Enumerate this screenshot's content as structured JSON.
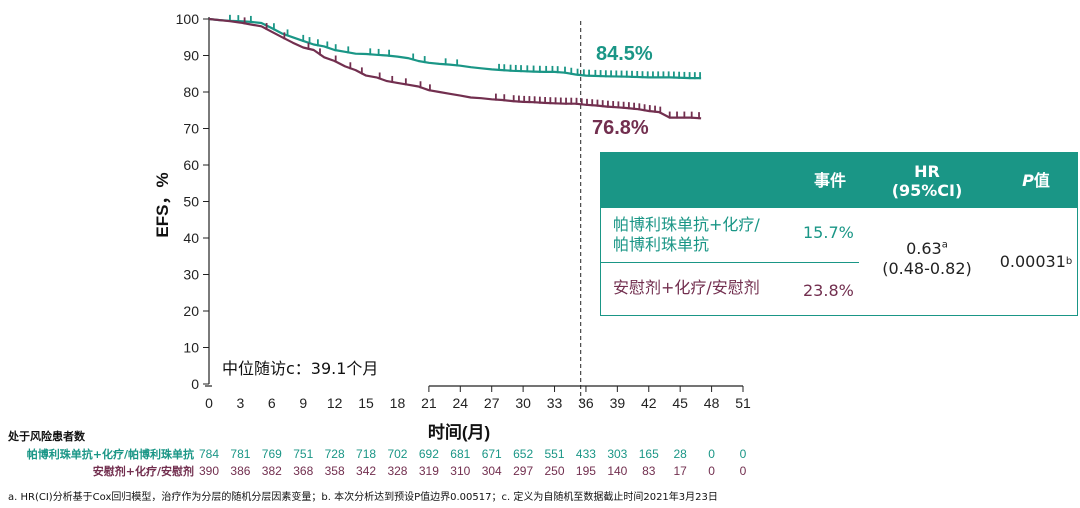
{
  "chart_data": {
    "type": "line",
    "title": "",
    "xlabel": "时间(月)",
    "ylabel": "EFS，%",
    "xlim": [
      0,
      51
    ],
    "ylim": [
      0,
      100
    ],
    "x_ticks": [
      0,
      3,
      6,
      9,
      12,
      15,
      18,
      21,
      24,
      27,
      30,
      33,
      36,
      39,
      42,
      45,
      48,
      51
    ],
    "y_ticks": [
      0,
      10,
      20,
      30,
      40,
      50,
      60,
      70,
      80,
      90,
      100
    ],
    "reference_line_x": 35.5,
    "series": [
      {
        "name": "帕博利珠单抗+化疗/帕博利珠单抗",
        "color": "#1a9686",
        "final_label": "84.5%",
        "points": [
          [
            0,
            100
          ],
          [
            1,
            99.7
          ],
          [
            2,
            99.5
          ],
          [
            3,
            99.4
          ],
          [
            4,
            99.2
          ],
          [
            5,
            98.9
          ],
          [
            6,
            97.5
          ],
          [
            7,
            96
          ],
          [
            8,
            95
          ],
          [
            9,
            94
          ],
          [
            10,
            93
          ],
          [
            11,
            92.5
          ],
          [
            12,
            91.5
          ],
          [
            13,
            91
          ],
          [
            14,
            90.5
          ],
          [
            15,
            90.4
          ],
          [
            16,
            90.2
          ],
          [
            17,
            90
          ],
          [
            18,
            89.7
          ],
          [
            19,
            89.3
          ],
          [
            20,
            88.5
          ],
          [
            21,
            88
          ],
          [
            22,
            87.7
          ],
          [
            23,
            87.5
          ],
          [
            24,
            87.2
          ],
          [
            25,
            86.8
          ],
          [
            26,
            86.5
          ],
          [
            27,
            86.2
          ],
          [
            28,
            86
          ],
          [
            29,
            85.8
          ],
          [
            30,
            85.7
          ],
          [
            31,
            85.6
          ],
          [
            32,
            85.5
          ],
          [
            33,
            85.5
          ],
          [
            34,
            85.3
          ],
          [
            35,
            84.8
          ],
          [
            36,
            84.5
          ],
          [
            38,
            84.3
          ],
          [
            40,
            84.2
          ],
          [
            42,
            84
          ],
          [
            44,
            84
          ],
          [
            46,
            83.8
          ],
          [
            47,
            83.8
          ]
        ],
        "censor_x": [
          2,
          2.8,
          4,
          6.2,
          7.5,
          9,
          9.6,
          10.4,
          11.3,
          12.1,
          13.3,
          15.4,
          16.2,
          17.2,
          19.5,
          20.6,
          22.6,
          23.7,
          27.7,
          28.2,
          28.8,
          29.3,
          29.8,
          30.4,
          31,
          31.6,
          32.2,
          32.8,
          33.3,
          34,
          34.6,
          35.2,
          35.8,
          36.3,
          36.9,
          37.4,
          37.9,
          38.4,
          38.9,
          39.4,
          39.9,
          40.4,
          40.9,
          41.4,
          41.9,
          42.4,
          42.9,
          43.4,
          43.9,
          44.4,
          44.9,
          45.4,
          45.9,
          46.4,
          46.9
        ]
      },
      {
        "name": "安慰剂+化疗/安慰剂",
        "color": "#722f4f",
        "final_label": "76.8%",
        "points": [
          [
            0,
            100
          ],
          [
            2,
            99.4
          ],
          [
            3,
            99
          ],
          [
            4,
            98.5
          ],
          [
            5,
            98
          ],
          [
            6,
            96.5
          ],
          [
            7,
            95
          ],
          [
            8,
            93.5
          ],
          [
            9,
            92.2
          ],
          [
            10,
            91.5
          ],
          [
            11,
            89.5
          ],
          [
            12,
            88.5
          ],
          [
            13,
            87
          ],
          [
            14,
            86
          ],
          [
            15,
            84.5
          ],
          [
            16,
            84
          ],
          [
            17,
            83
          ],
          [
            18,
            82.5
          ],
          [
            19,
            82
          ],
          [
            20,
            81.5
          ],
          [
            21,
            80.5
          ],
          [
            22,
            80
          ],
          [
            23,
            79.5
          ],
          [
            24,
            79
          ],
          [
            25,
            78.5
          ],
          [
            26,
            78.3
          ],
          [
            27,
            78
          ],
          [
            28,
            77.8
          ],
          [
            29,
            77.5
          ],
          [
            30,
            77.3
          ],
          [
            31,
            77.2
          ],
          [
            32,
            77
          ],
          [
            33,
            76.9
          ],
          [
            34,
            76.8
          ],
          [
            35,
            76.8
          ],
          [
            36,
            76.5
          ],
          [
            37,
            76.3
          ],
          [
            38,
            76
          ],
          [
            39,
            75.8
          ],
          [
            40,
            75.6
          ],
          [
            41,
            75.3
          ],
          [
            42,
            74.8
          ],
          [
            43,
            74.5
          ],
          [
            44,
            73
          ],
          [
            45,
            73
          ],
          [
            46,
            73
          ],
          [
            47,
            72.8
          ]
        ],
        "censor_x": [
          3.4,
          5.5,
          7.2,
          9.5,
          10.6,
          12.1,
          13.5,
          14.6,
          16.3,
          17.5,
          18.8,
          20.2,
          21.1,
          27.4,
          28.2,
          29.1,
          29.6,
          30.1,
          30.6,
          31.1,
          31.6,
          32.1,
          32.6,
          33.1,
          33.6,
          34.1,
          34.6,
          35.1,
          35.6,
          36.1,
          36.6,
          37.1,
          37.6,
          38.1,
          38.6,
          39.1,
          39.6,
          40.1,
          40.6,
          41.1,
          41.6,
          42.1,
          42.6,
          43.1,
          44,
          44.7,
          45.4,
          46.1,
          46.8
        ]
      }
    ],
    "median_followup": "中位随访c：39.1个月",
    "risk_table": {
      "title": "处于风险患者数",
      "rows": [
        {
          "label": "帕博利珠单抗+化疗/帕博利珠单抗",
          "color": "#1a9686",
          "values": [
            "784",
            "781",
            "769",
            "751",
            "728",
            "718",
            "702",
            "692",
            "681",
            "671",
            "652",
            "551",
            "433",
            "303",
            "165",
            "28",
            "0",
            "0"
          ]
        },
        {
          "label": "安慰剂+化疗/安慰剂",
          "color": "#722f4f",
          "values": [
            "390",
            "386",
            "382",
            "368",
            "358",
            "342",
            "328",
            "319",
            "310",
            "304",
            "297",
            "250",
            "195",
            "140",
            "83",
            "17",
            "0",
            "0"
          ]
        }
      ]
    }
  },
  "stats_table": {
    "headers": {
      "events": "事件",
      "hr_line1": "HR",
      "hr_line2": "(95%CI)",
      "p_italic": "P",
      "p_rest": "值"
    },
    "row1": {
      "arm_line1": "帕博利珠单抗+化疗/",
      "arm_line2": "帕博利珠单抗",
      "events": "15.7%"
    },
    "row2": {
      "arm": "安慰剂+化疗/安慰剂",
      "events": "23.8%"
    },
    "hr_value": "0.63",
    "hr_sup": "a",
    "hr_ci": "(0.48-0.82)",
    "p_value": "0.00031",
    "p_sup": "b"
  },
  "footnote": "a. HR(CI)分析基于Cox回归模型，治疗作为分层的随机分层因素变量；b. 本次分析达到预设P值边界0.00517；c. 定义为自随机至数据截止时间2021年3月23日",
  "colors": {
    "teal": "#1a9686",
    "maroon": "#722f4f"
  }
}
